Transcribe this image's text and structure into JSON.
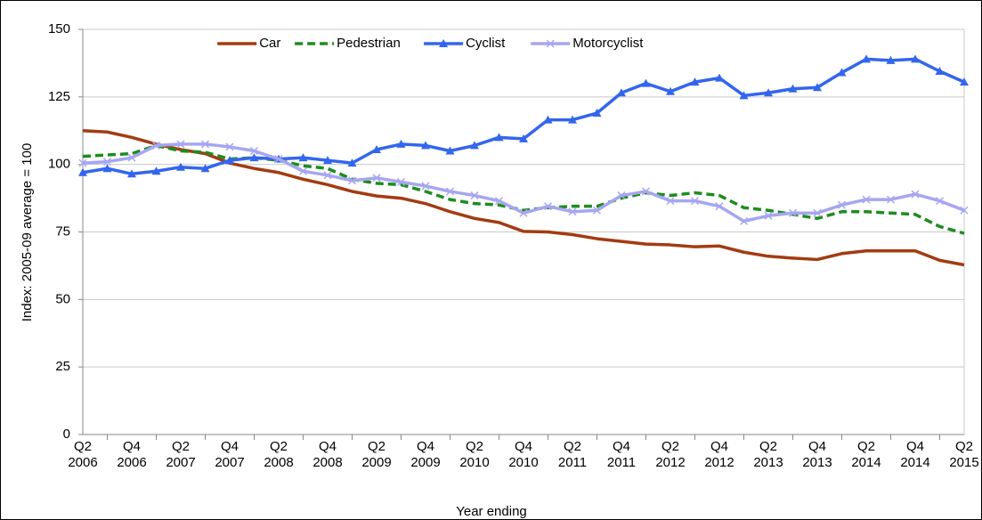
{
  "chart_data": {
    "type": "line",
    "y_label": "Index: 2005-09 average = 100",
    "x_label": "Year ending",
    "categories": [
      "Q2\n2006",
      null,
      "Q4\n2006",
      null,
      "Q2\n2007",
      null,
      "Q4\n2007",
      null,
      "Q2\n2008",
      null,
      "Q4\n2008",
      null,
      "Q2\n2009",
      null,
      "Q4\n2009",
      null,
      "Q2\n2010",
      null,
      "Q4\n2010",
      null,
      "Q2\n2011",
      null,
      "Q4\n2011",
      null,
      "Q2\n2012",
      null,
      "Q4\n2012",
      null,
      "Q2\n2013",
      null,
      "Q4\n2013",
      null,
      "Q2\n2014",
      null,
      "Q4\n2014",
      null,
      "Q2\n2015"
    ],
    "series": [
      {
        "name": "Car",
        "color": "#a33b12",
        "dashed": false,
        "marker": "none",
        "values": [
          112.5,
          112,
          110,
          107.5,
          105.5,
          104,
          100.5,
          98.5,
          97,
          94.5,
          92.5,
          90,
          88.3,
          87.5,
          85.5,
          82.5,
          80,
          78.5,
          75.2,
          75,
          74,
          72.5,
          71.5,
          70.5,
          70.2,
          69.5,
          69.8,
          67.5,
          66,
          65.3,
          64.8,
          67,
          68,
          68,
          68,
          64.5,
          62.8
        ]
      },
      {
        "name": "Pedestrian",
        "color": "#1e8c1e",
        "dashed": true,
        "marker": "none",
        "values": [
          103,
          103.5,
          104,
          107,
          105,
          104.5,
          102,
          102.5,
          101.5,
          99.5,
          98.5,
          94.5,
          93,
          92.5,
          90,
          87,
          85.5,
          85,
          83,
          84,
          84.5,
          84.5,
          87.5,
          89.5,
          88.5,
          89.5,
          88.5,
          84,
          83,
          81.5,
          80,
          82.5,
          82.5,
          82,
          81.5,
          77,
          74.5
        ]
      },
      {
        "name": "Cyclist",
        "color": "#3366ee",
        "dashed": false,
        "marker": "triangle",
        "values": [
          97,
          98.5,
          96.5,
          97.5,
          99,
          98.5,
          101.5,
          102.5,
          102,
          102.5,
          101.5,
          100.5,
          105.5,
          107.5,
          107,
          105,
          107,
          110,
          109.5,
          116.5,
          116.5,
          119,
          126.5,
          130,
          127,
          130.5,
          132,
          125.5,
          126.5,
          128,
          128.5,
          134,
          139,
          138.5,
          139,
          134.5,
          130.5
        ]
      },
      {
        "name": "Motorcyclist",
        "color": "#a6a6f2",
        "dashed": false,
        "marker": "cross",
        "values": [
          100.5,
          101,
          102.5,
          107,
          107.5,
          107.5,
          106.5,
          105,
          102,
          97.5,
          96,
          94,
          95,
          93.5,
          92,
          90,
          88.5,
          86.5,
          82,
          84.5,
          82.5,
          83,
          88.5,
          90,
          86.5,
          86.5,
          84.5,
          79,
          81,
          82,
          82,
          85,
          87,
          87,
          89,
          86.5,
          83
        ]
      }
    ],
    "ylim": [
      0,
      150
    ],
    "yticks": [
      0,
      25,
      50,
      75,
      100,
      125,
      150
    ],
    "grid": true,
    "legend": "top"
  }
}
